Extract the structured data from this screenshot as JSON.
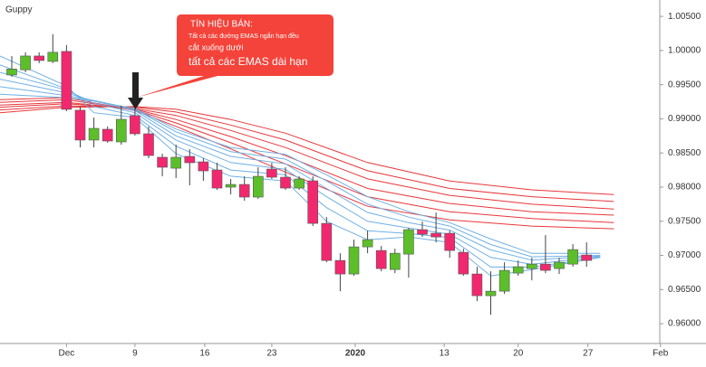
{
  "chart_data": {
    "type": "candlestick",
    "title": "Guppy",
    "x": [
      0,
      1,
      2,
      3,
      4,
      5,
      6,
      7,
      8,
      9,
      10,
      11,
      12,
      13,
      14,
      15,
      16,
      17,
      18,
      19,
      20,
      21,
      22,
      23,
      24,
      25,
      26,
      27,
      28,
      29,
      30,
      31,
      32,
      33,
      34,
      35,
      36,
      37,
      38,
      39,
      40,
      41,
      42
    ],
    "open": [
      0.99642,
      0.99718,
      0.9992,
      0.99841,
      0.99987,
      0.99126,
      0.98689,
      0.98847,
      0.98662,
      0.99046,
      0.98781,
      0.98437,
      0.98277,
      0.9845,
      0.9837,
      0.98251,
      0.98,
      0.98039,
      0.97854,
      0.98264,
      0.98145,
      0.97986,
      0.98092,
      0.97469,
      0.96926,
      0.96728,
      0.97125,
      0.97072,
      0.96794,
      0.97019,
      0.97377,
      0.97324,
      0.97324,
      0.97045,
      0.96728,
      0.9641,
      0.96476,
      0.96741,
      0.96807,
      0.96873,
      0.96807,
      0.96873,
      0.97006
    ],
    "high": [
      0.9992,
      0.99974,
      0.99974,
      1.00239,
      1.0008,
      0.99179,
      0.9902,
      0.98887,
      0.99192,
      0.99179,
      0.98887,
      0.98489,
      0.98622,
      0.98556,
      0.98423,
      0.98357,
      0.98119,
      0.98158,
      0.98291,
      0.98357,
      0.98291,
      0.98158,
      0.98158,
      0.97562,
      0.97032,
      0.97231,
      0.97363,
      0.97138,
      0.97098,
      0.97403,
      0.97496,
      0.97628,
      0.97363,
      0.97098,
      0.96834,
      0.96767,
      0.969,
      0.96926,
      0.96966,
      0.97297,
      0.96966,
      0.97165,
      0.97191
    ],
    "low": [
      0.99616,
      0.99682,
      0.99815,
      0.99815,
      0.99112,
      0.98582,
      0.98582,
      0.98649,
      0.98622,
      0.98755,
      0.98423,
      0.98158,
      0.98132,
      0.98026,
      0.98092,
      0.9796,
      0.97893,
      0.97801,
      0.97827,
      0.98119,
      0.9796,
      0.9796,
      0.9743,
      0.969,
      0.96476,
      0.96701,
      0.97032,
      0.96767,
      0.96741,
      0.96675,
      0.9727,
      0.97191,
      0.96966,
      0.96701,
      0.9633,
      0.96131,
      0.96436,
      0.96701,
      0.96635,
      0.96741,
      0.96728,
      0.96834,
      0.96834
    ],
    "close": [
      0.9973,
      0.9992,
      0.99854,
      0.99974,
      0.99139,
      0.98689,
      0.9886,
      0.98675,
      0.98993,
      0.98781,
      0.98463,
      0.98291,
      0.98437,
      0.98357,
      0.98238,
      0.97986,
      0.98039,
      0.97854,
      0.98158,
      0.98145,
      0.97986,
      0.98119,
      0.97469,
      0.96926,
      0.96728,
      0.97125,
      0.97231,
      0.96807,
      0.97032,
      0.97377,
      0.9731,
      0.9727,
      0.97072,
      0.96728,
      0.9641,
      0.96476,
      0.96781,
      0.96834,
      0.96873,
      0.96781,
      0.969,
      0.97085,
      0.96926
    ],
    "up_color": "#5cbf2a",
    "down_color": "#f2286f",
    "ema_groups": [
      {
        "color": "#e8363a",
        "x": [
          -0.86,
          4,
          9,
          12,
          16,
          20,
          26,
          32,
          38,
          44
        ],
        "series": [
          [
            0.9928,
            0.9931,
            0.9912,
            0.9889,
            0.9856,
            0.9822,
            0.9772,
            0.9752,
            0.9743,
            0.9739
          ],
          [
            0.9924,
            0.9928,
            0.9913,
            0.9894,
            0.9865,
            0.9834,
            0.9786,
            0.9764,
            0.9754,
            0.9748
          ],
          [
            0.992,
            0.9924,
            0.9914,
            0.9899,
            0.9874,
            0.9846,
            0.9798,
            0.9776,
            0.9764,
            0.9759
          ],
          [
            0.9917,
            0.9922,
            0.9915,
            0.9905,
            0.9883,
            0.9858,
            0.9812,
            0.9788,
            0.9775,
            0.9768
          ],
          [
            0.9913,
            0.9919,
            0.9917,
            0.991,
            0.9891,
            0.9869,
            0.9824,
            0.9798,
            0.9786,
            0.9779
          ],
          [
            0.9909,
            0.9917,
            0.9918,
            0.9914,
            0.9899,
            0.9879,
            0.9836,
            0.9809,
            0.9796,
            0.9789
          ]
        ]
      },
      {
        "color": "#6fb0e4",
        "x": [
          -0.86,
          4,
          6,
          9,
          12,
          16,
          20,
          23,
          26,
          29,
          32,
          35,
          38,
          41,
          43
        ],
        "series": [
          [
            0.9992,
            0.9948,
            0.9909,
            0.9902,
            0.9849,
            0.9816,
            0.9809,
            0.975,
            0.9723,
            0.9727,
            0.9719,
            0.967,
            0.9679,
            0.969,
            0.9697
          ],
          [
            0.9979,
            0.9944,
            0.9918,
            0.9905,
            0.986,
            0.9825,
            0.9818,
            0.977,
            0.9736,
            0.9732,
            0.9726,
            0.9683,
            0.9683,
            0.9691,
            0.9697
          ],
          [
            0.9968,
            0.9942,
            0.9923,
            0.9909,
            0.9869,
            0.9836,
            0.9826,
            0.9786,
            0.975,
            0.974,
            0.9731,
            0.9697,
            0.9687,
            0.9694,
            0.9698
          ],
          [
            0.9958,
            0.9938,
            0.9926,
            0.9912,
            0.9875,
            0.9845,
            0.9834,
            0.9798,
            0.9763,
            0.9748,
            0.9737,
            0.9708,
            0.9693,
            0.9697,
            0.9699
          ],
          [
            0.9947,
            0.9934,
            0.9927,
            0.9914,
            0.9881,
            0.9852,
            0.9841,
            0.9809,
            0.9775,
            0.9756,
            0.9743,
            0.9716,
            0.9698,
            0.9699,
            0.97
          ],
          [
            0.9936,
            0.9931,
            0.9926,
            0.9915,
            0.9885,
            0.9858,
            0.9848,
            0.9818,
            0.9786,
            0.9764,
            0.9748,
            0.9724,
            0.9703,
            0.9703,
            0.9703
          ]
        ]
      }
    ],
    "xlim": [
      -0.86,
      47.35
    ],
    "ylim": [
      1.0074,
      0.9571
    ],
    "xticks": [
      {
        "value": 4,
        "label": "Dec"
      },
      9,
      {
        "value": 14.1,
        "label": "16"
      },
      {
        "value": 19,
        "label": "23"
      },
      {
        "value": 25.1,
        "label": "2020"
      },
      {
        "value": 31.6,
        "label": "13"
      },
      {
        "value": 37,
        "label": "20"
      },
      {
        "value": 42.1,
        "label": "27"
      },
      {
        "value": 47.4,
        "label": "Feb"
      }
    ],
    "yticks": [
      {
        "value": 1.005,
        "label": "1.00500"
      },
      {
        "value": 1.0,
        "label": "1.00000"
      },
      {
        "value": 0.995,
        "label": "0.99500"
      },
      {
        "value": 0.99,
        "label": "0.99000"
      },
      {
        "value": 0.985,
        "label": "0.98500"
      },
      {
        "value": 0.98,
        "label": "0.98000"
      },
      {
        "value": 0.975,
        "label": "0.97500"
      },
      {
        "value": 0.97,
        "label": "0.97000"
      },
      {
        "value": 0.965,
        "label": "0.96500"
      },
      {
        "value": 0.96,
        "label": "0.96000"
      }
    ],
    "annotation": {
      "title": "TÍN HIỆU BÁN:",
      "lines": [
        "Tất cả các đường EMAS ngắn hạn đều",
        "cắt xuống dưới",
        "tất cả các EMAS dài hạn"
      ]
    }
  }
}
